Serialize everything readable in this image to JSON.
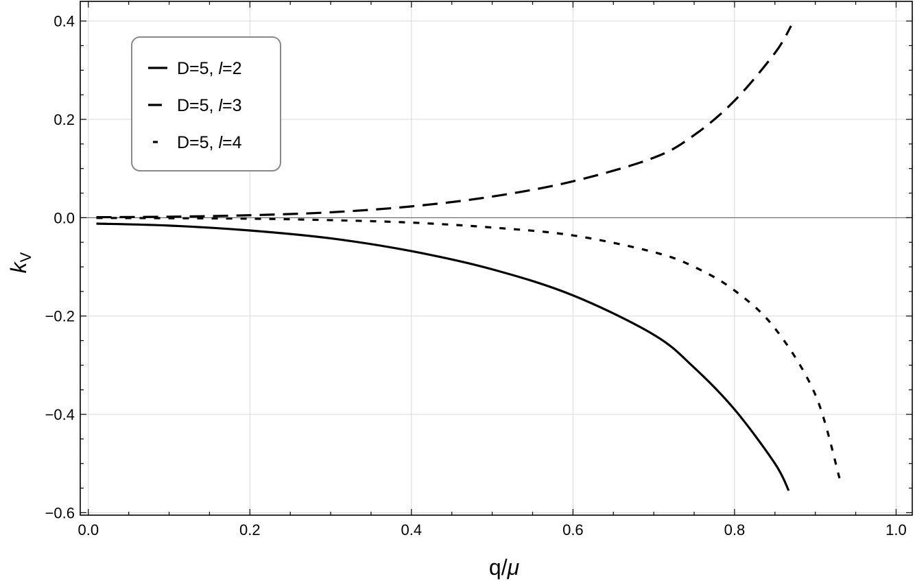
{
  "chart_data": {
    "type": "line",
    "title": "",
    "xlabel_main": "q/",
    "xlabel_greek": "μ",
    "ylabel_main": "k",
    "ylabel_sub": "V",
    "xlim": [
      -0.01,
      1.02
    ],
    "ylim": [
      -0.605,
      0.44
    ],
    "x_ticks": [
      0.0,
      0.2,
      0.4,
      0.6,
      0.8,
      1.0
    ],
    "x_tick_labels": [
      "0.0",
      "0.2",
      "0.4",
      "0.6",
      "0.8",
      "1.0"
    ],
    "y_ticks": [
      -0.6,
      -0.4,
      -0.2,
      0.0,
      0.2,
      0.4
    ],
    "y_tick_labels": [
      "−0.6",
      "−0.4",
      "−0.2",
      "0.0",
      "0.2",
      "0.4"
    ],
    "grid": true,
    "legend_position": "top-left",
    "series": [
      {
        "name_prefix": "D=5, ",
        "name_var": "l",
        "name_suffix": "=2",
        "style": "solid",
        "x": [
          0.01,
          0.1,
          0.2,
          0.3,
          0.4,
          0.5,
          0.6,
          0.7,
          0.75,
          0.8,
          0.85,
          0.867
        ],
        "y": [
          -0.012,
          -0.016,
          -0.026,
          -0.042,
          -0.068,
          -0.105,
          -0.158,
          -0.238,
          -0.305,
          -0.39,
          -0.5,
          -0.555
        ]
      },
      {
        "name_prefix": "D=5, ",
        "name_var": "l",
        "name_suffix": "=3",
        "style": "dashed",
        "x": [
          0.01,
          0.1,
          0.2,
          0.3,
          0.4,
          0.5,
          0.6,
          0.7,
          0.75,
          0.8,
          0.85,
          0.87
        ],
        "y": [
          0.001,
          0.002,
          0.005,
          0.011,
          0.023,
          0.043,
          0.074,
          0.122,
          0.168,
          0.238,
          0.335,
          0.39
        ]
      },
      {
        "name_prefix": "D=5, ",
        "name_var": "l",
        "name_suffix": "=4",
        "style": "short-dashed",
        "x": [
          0.01,
          0.1,
          0.2,
          0.3,
          0.4,
          0.5,
          0.6,
          0.7,
          0.75,
          0.8,
          0.85,
          0.9,
          0.93
        ],
        "y": [
          -0.0005,
          -0.001,
          -0.002,
          -0.005,
          -0.01,
          -0.02,
          -0.036,
          -0.07,
          -0.1,
          -0.148,
          -0.225,
          -0.36,
          -0.53
        ]
      }
    ]
  }
}
